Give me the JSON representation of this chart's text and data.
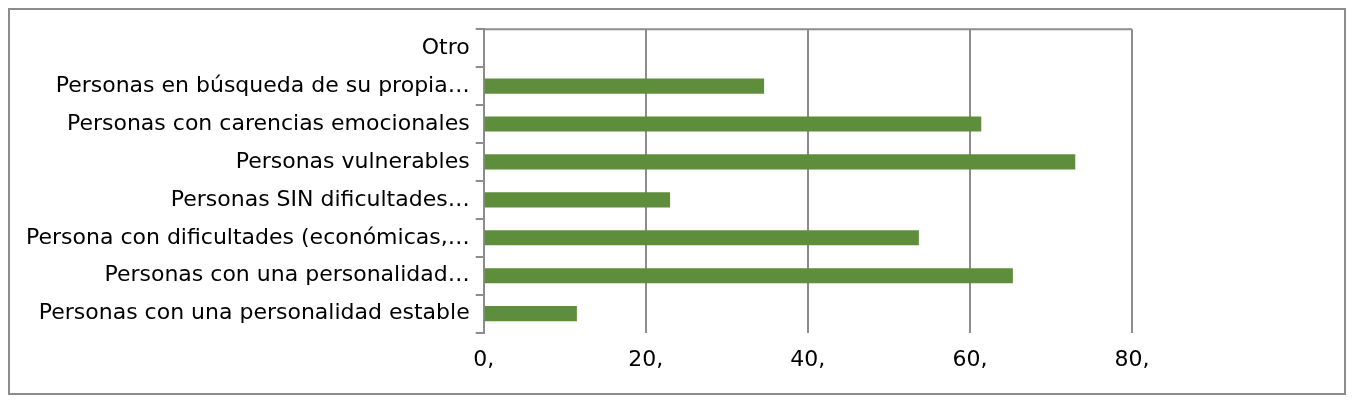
{
  "chart_data": {
    "type": "bar",
    "orientation": "horizontal",
    "categories": [
      "Otro",
      "Personas en búsqueda de su propia…",
      "Personas con carencias emocionales",
      "Personas vulnerables",
      "Personas SIN dificultades…",
      "Persona con dificultades (económicas,…",
      "Personas con una personalidad…",
      "Personas con una personalidad estable"
    ],
    "values": [
      0,
      34.6,
      61.4,
      73.0,
      23.0,
      53.7,
      65.3,
      11.5
    ],
    "color": "#5e8e3b",
    "xlim": [
      0,
      80
    ],
    "xticks": [
      {
        "value": 0,
        "label": "0,"
      },
      {
        "value": 20,
        "label": "20,"
      },
      {
        "value": 40,
        "label": "40,"
      },
      {
        "value": 60,
        "label": "60,"
      },
      {
        "value": 80,
        "label": "80,"
      }
    ],
    "grid": "x",
    "legend": false
  }
}
